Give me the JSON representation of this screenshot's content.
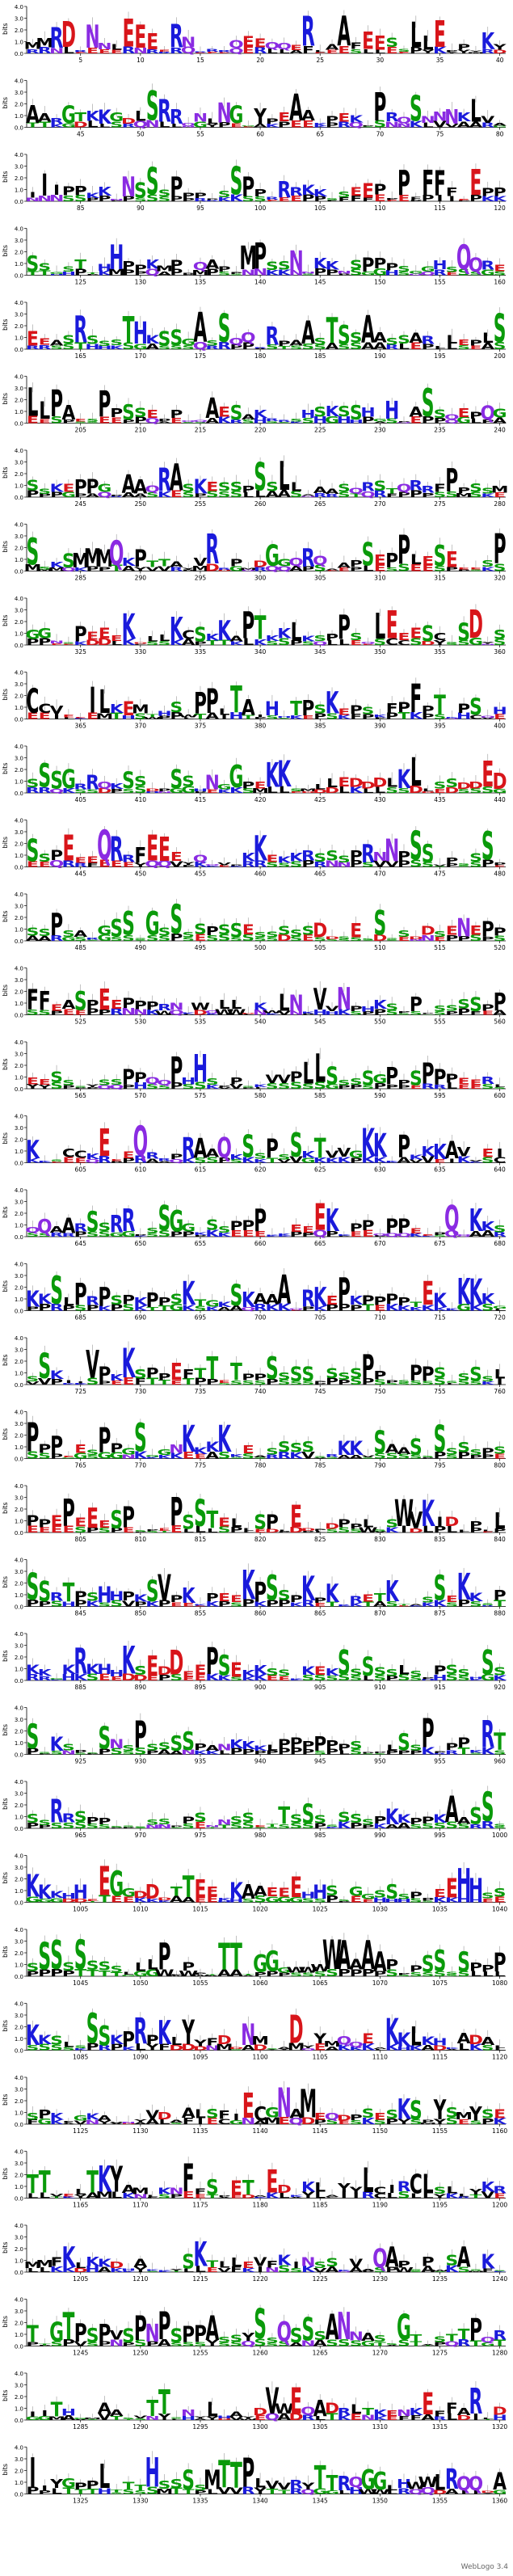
{
  "title": "",
  "footer": "WebLogo 3.4",
  "y_axis_label": "bits",
  "y_ticks": [
    "4.0",
    "3.0",
    "2.0",
    "1.0",
    "0.0"
  ],
  "chart_data": {
    "type": "sequence-logo",
    "positions_per_row": 40,
    "total_positions": 1360,
    "ylim": [
      0,
      4
    ],
    "color_scheme": {
      "hydrophobic": "#000000",
      "polar": "#0a9a0a",
      "basic": "#1a1adb",
      "acidic": "#d8151a",
      "amide": "#8a2be2"
    },
    "rows": [
      {
        "start": 1,
        "ticks": [
          5,
          10,
          15,
          20,
          25,
          30,
          35,
          40
        ],
        "consensus": "MRDRNLEEERNRRQEEQERLAFEESLLEPYKY"
      },
      {
        "start": 41,
        "ticks": [
          45,
          50,
          55,
          60,
          65,
          70,
          75,
          80
        ],
        "consensus": "ARGTKGDLSRQNLNGYPEAKPEKPRQSNNKLVA"
      },
      {
        "start": 81,
        "ticks": [
          85,
          90,
          95,
          100,
          105,
          110,
          115,
          120
        ],
        "consensus": "IPKNSPPSPRKSEPFFEP"
      },
      {
        "start": 121,
        "ticks": [
          125,
          130,
          135,
          140,
          145,
          150,
          155,
          160
        ],
        "consensus": "SGSTHHPKMPQAPMPSNNKNSPPSGHSQRE"
      },
      {
        "start": 161,
        "ticks": [
          165,
          170,
          175,
          180,
          185,
          190,
          195,
          200
        ],
        "consensus": "EASRSSTHKSGASSQRRPASTSSASSARLEPLS"
      },
      {
        "start": 201,
        "ticks": [
          205,
          210,
          215,
          220,
          225,
          230,
          235,
          240
        ],
        "consensus": "LPAESPSSEPPQAESAKRSHSKSHGHPASQEPQG"
      },
      {
        "start": 241,
        "ticks": [
          245,
          250,
          255,
          260,
          265,
          270,
          275,
          280
        ],
        "consensus": "SKEPPGPAQRASKESPSSLLAASQRSTQRFPPSSM"
      },
      {
        "start": 281,
        "ticks": [
          285,
          290,
          295,
          300,
          305,
          310,
          315,
          320
        ],
        "consensus": "SKSMMQKPTAYVRPMDGQRQAPSEPLESEESP"
      },
      {
        "start": 321,
        "ticks": [
          325,
          330,
          335,
          340,
          345,
          350,
          355,
          360
        ],
        "consensus": "GNSPEEKDLKCSKAPTKLKSPSQLEESCSDYS"
      },
      {
        "start": 361,
        "ticks": [
          365,
          370,
          375,
          380,
          385,
          390,
          395,
          400
        ],
        "consensus": "CVEEILKEMTHSWPPLTAIHTPSKEPSKFPFPTKPSQH"
      },
      {
        "start": 401,
        "ticks": [
          405,
          410,
          415,
          420,
          425,
          430,
          435,
          440
        ],
        "consensus": "SSGRQKSDPSHNGPEKSMLEDDLKLSSDED"
      },
      {
        "start": 441,
        "ticks": [
          445,
          450,
          455,
          460,
          465,
          470,
          475,
          480
        ],
        "consensus": "SPEEQRFEEYQVPKEKRSSPRNPSVPSSP"
      },
      {
        "start": 481,
        "ticks": [
          485,
          490,
          495,
          500,
          505,
          510,
          515,
          520
        ],
        "consensus": "SPSARGSSGSSSSPSESSSSSDSESSSSDSENEPP"
      },
      {
        "start": 521,
        "ticks": [
          525,
          530,
          535,
          540,
          545,
          550,
          555,
          560
        ],
        "consensus": "FEASPEEPPRNKWQLDKWLNKVNPHKSPPSSSSPP"
      },
      {
        "start": 561,
        "ticks": [
          565,
          570,
          575,
          580,
          585,
          590,
          595,
          600
        ],
        "consensus": "ESSYSPPQPHSPSKVPLSSSGPSPPERL"
      },
      {
        "start": 601,
        "ticks": [
          605,
          610,
          615,
          620,
          625,
          630,
          635,
          640
        ],
        "consensus": "KSCKEEQRPRAQKSPSKTVGKKPKKAVEI"
      },
      {
        "start": 641,
        "ticks": [
          645,
          650,
          655,
          660,
          665,
          670,
          675,
          680
        ],
        "consensus": "QARSRPSGKSPPKEEKPQPEPQKS"
      },
      {
        "start": 681,
        "ticks": [
          685,
          690,
          695,
          700,
          705,
          710,
          715,
          720
        ],
        "consensus": "KSLPRPSPKPSKTGKSKAAQRKEPKPPPTEKKKKKG"
      },
      {
        "start": 721,
        "ticks": [
          725,
          730,
          735,
          740,
          745,
          750,
          755,
          760
        ],
        "consensus": "SKIVPKSPEFTETPSSSPSSPPSPSSSSL"
      },
      {
        "start": 761,
        "ticks": [
          765,
          770,
          775,
          780,
          785,
          790,
          795,
          800
        ],
        "consensus": "PPESPGSGNKKKEASSSRKVSASSSSPS"
      },
      {
        "start": 801,
        "ticks": [
          805,
          810,
          815,
          820,
          825,
          830,
          835,
          840
        ],
        "consensus": "PEPEEESPSPEPSTELLSPLEDPDPLSSWVKIDLPLL"
      },
      {
        "start": 841,
        "ticks": [
          845,
          850,
          855,
          860,
          865,
          870,
          875,
          880
        ],
        "consensus": "SRTPSHPKSVPKPEEKPSPKPKRETKTASEKKSP"
      },
      {
        "start": 881,
        "ticks": [
          885,
          890,
          895,
          900,
          905,
          910,
          915,
          920
        ],
        "consensus": "KGKRKHKSEDDEPSEKKSKKEKSSSSLSPSSHSS"
      },
      {
        "start": 921,
        "ticks": [
          925,
          930,
          935,
          940,
          945,
          950,
          955,
          960
        ],
        "consensus": "SKSPSNSPSSSPANKKLPPPPPSPLSSPPPKRT"
      },
      {
        "start": 961,
        "ticks": [
          965,
          970,
          975,
          980,
          985,
          990,
          995,
          1000
        ],
        "consensus": "SRSPSSSPSNSETSSSSPKPKASS"
      },
      {
        "start": 1001,
        "ticks": [
          1005,
          1010,
          1015,
          1020,
          1025,
          1030,
          1035,
          1040
        ],
        "consensus": "KHEGDTEKAEHSGSPEHS"
      },
      {
        "start": 1041,
        "ticks": [
          1045,
          1050,
          1055,
          1060,
          1065,
          1070,
          1075,
          1080
        ],
        "consensus": "SSLPTGWAPSP"
      },
      {
        "start": 1081,
        "ticks": [
          1085,
          1090,
          1095,
          1100,
          1105,
          1110,
          1115,
          1120
        ],
        "consensus": "KSLSSSKPRPKLYFDDNMSADYYMQEAKKLKHKADAL"
      },
      {
        "start": 1121,
        "ticks": [
          1125,
          1130,
          1135,
          1140,
          1145,
          1150,
          1155,
          1160
        ],
        "consensus": "SPKFGKAVNYVDAALSFIECGNAMEQDPSESKSPYSMYSE"
      },
      {
        "start": 1161,
        "ticks": [
          1165,
          1170,
          1175,
          1180,
          1185,
          1190,
          1195,
          1200
        ],
        "consensus": "TVELTKYAMLKNFSPETAEDKKLAYLCIRCLSLLYKR"
      },
      {
        "start": 1201,
        "ticks": [
          1205,
          1210,
          1215,
          1220,
          1225,
          1230,
          1235,
          1240
        ],
        "consensus": "MFKLKKDHAKKYSKTLLEVFKINSSKVAQAPSPWSASKS"
      },
      {
        "start": 1241,
        "ticks": [
          1245,
          1250,
          1255,
          1260,
          1265,
          1270,
          1275,
          1280
        ],
        "consensus": "TGTPSPVSPNPSPASSYSSQSSSANASSGTASTTPQR"
      },
      {
        "start": 1281,
        "ticks": [
          1285,
          1290,
          1295,
          1300,
          1305,
          1310,
          1315,
          1320
        ],
        "consensus": "ITHGMAASVTTSNYLHAYDVWEQADRLTKENKEFFARLD"
      },
      {
        "start": 1321,
        "ticks": [
          1325,
          1330,
          1335,
          1340,
          1345,
          1350,
          1355,
          1360
        ],
        "consensus": "IYGPLTTHSSSMTPLVRYTRQGLHWLRQDA"
      }
    ]
  }
}
